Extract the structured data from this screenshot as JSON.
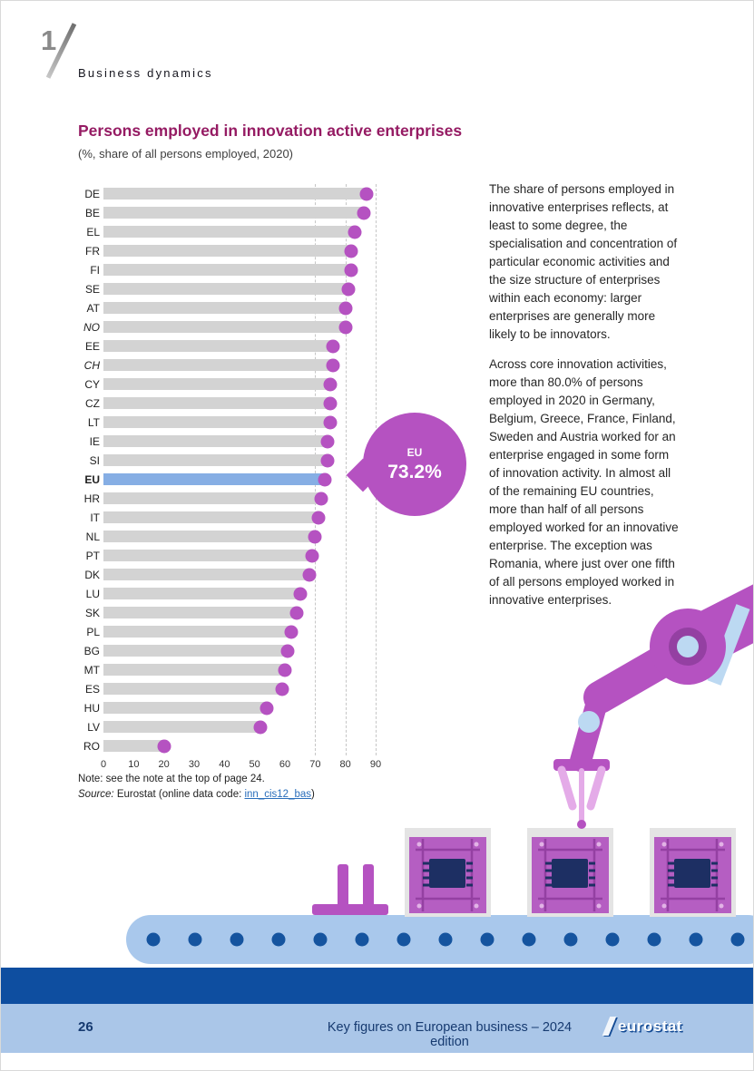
{
  "header": {
    "chapter_number": "1",
    "chapter_title": "Business dynamics"
  },
  "figure": {
    "title": "Persons employed in innovation active enterprises",
    "subtitle": "(%, share of all persons employed, 2020)",
    "note": "Note: see the note at the top of page 24.",
    "source_label": "Source:",
    "source_text": " Eurostat (online data code: ",
    "source_link": "inn_cis12_bas",
    "source_suffix": ")"
  },
  "callout": {
    "label": "EU",
    "value": "73.2%"
  },
  "commentary": {
    "para1": "The share of persons employed in innovative enterprises reflects, at least to some degree, the specialisation and concentration of particular economic activities and the size structure of enterprises within each economy: larger enterprises are generally more likely to be innovators.",
    "para2": "Across core innovation activities, more than 80.0% of persons employed in 2020 in Germany, Belgium, Greece, France, Finland, Sweden and Austria worked for an enterprise engaged in some form of innovation activity. In almost all of the remaining EU countries, more than half of all persons employed worked for an innovative enterprise. The exception was Romania, where just over one fifth of all persons employed worked in innovative enterprises."
  },
  "chart_data": {
    "type": "bar",
    "title": "Persons employed in innovation active enterprises",
    "subtitle": "(%, share of all persons employed, 2020)",
    "categories": [
      "DE",
      "BE",
      "EL",
      "FR",
      "FI",
      "SE",
      "AT",
      "NO",
      "EE",
      "CH",
      "CY",
      "CZ",
      "LT",
      "IE",
      "SI",
      "EU",
      "HR",
      "IT",
      "NL",
      "PT",
      "DK",
      "LU",
      "SK",
      "PL",
      "BG",
      "MT",
      "ES",
      "HU",
      "LV",
      "RO"
    ],
    "values": [
      87,
      86,
      83,
      82,
      82,
      81,
      80,
      80,
      76,
      76,
      75,
      75,
      75,
      74,
      74,
      73.2,
      72,
      71,
      70,
      69,
      68,
      65,
      64,
      62,
      61,
      60,
      59,
      54,
      52,
      20
    ],
    "italic_categories": [
      "NO",
      "CH"
    ],
    "highlight_category": "EU",
    "xlim": [
      0,
      90
    ],
    "x_ticks": [
      0,
      10,
      20,
      30,
      40,
      50,
      60,
      70,
      80,
      90
    ],
    "gridlines_dashed": [
      70,
      80,
      90
    ],
    "xlabel": "",
    "ylabel": ""
  },
  "footer": {
    "page_number": "26",
    "edition_text": "Key figures on European business – 2024 edition",
    "logo_text": "eurostat"
  },
  "colors": {
    "accent_magenta": "#b552c1",
    "title_purple": "#951b63",
    "bar_gray": "#d3d3d3",
    "eu_bar_blue": "#86aee4",
    "belt_blue": "#a9c8ec",
    "belt_dot_navy": "#15549f",
    "navy_band": "#0e4ea0",
    "footer_band": "#aac6e8",
    "footer_text": "#163a70",
    "link_blue": "#2a6ebb",
    "pcb_purple": "#b55ec2",
    "chip_navy": "#1d2f63",
    "backboard_gray": "#e4e4e4",
    "arm_light_blue": "#bcd9f2",
    "gripper_pink": "#e4abe8"
  }
}
